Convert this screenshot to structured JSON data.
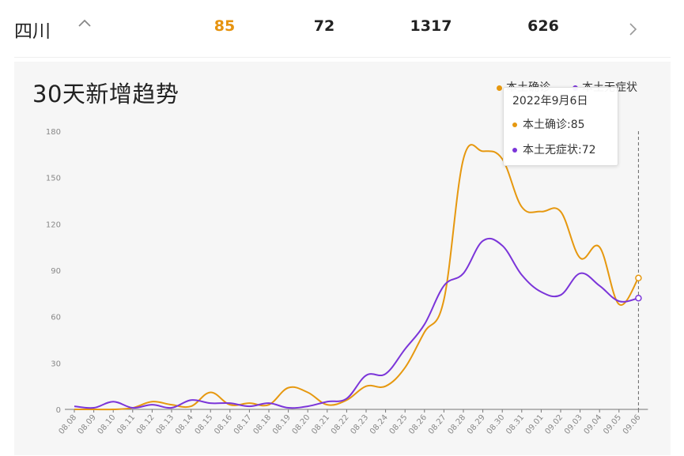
{
  "header": {
    "province": "四川",
    "stats": [
      "85",
      "72",
      "1317",
      "626"
    ]
  },
  "colors": {
    "confirmed": "#e6980f",
    "asymptomatic": "#7b35d9",
    "highlight": "#e6930f"
  },
  "icons": {
    "expand": "chevron-up-icon",
    "next": "chevron-right-icon"
  },
  "tooltip": {
    "title": "2022年9月6日",
    "rows": [
      "本土确诊:85",
      "本土无症状:72"
    ]
  },
  "chart_data": {
    "type": "line",
    "title": "30天新增趋势",
    "legend": [
      "本土确诊",
      "本土无症状"
    ],
    "legend_position": "top-right",
    "categories": [
      "08.08",
      "08.09",
      "08.10",
      "08.11",
      "08.12",
      "08.13",
      "08.14",
      "08.15",
      "08.16",
      "08.17",
      "08.18",
      "08.19",
      "08.20",
      "08.21",
      "08.22",
      "08.23",
      "08.24",
      "08.25",
      "08.26",
      "08.27",
      "08.28",
      "08.29",
      "08.30",
      "08.31",
      "09.01",
      "09.02",
      "09.03",
      "09.04",
      "09.05",
      "09.06"
    ],
    "series": [
      {
        "name": "本土确诊",
        "values": [
          0,
          0,
          0,
          1,
          5,
          3,
          2,
          11,
          3,
          4,
          3,
          14,
          11,
          3,
          6,
          15,
          15,
          27,
          50,
          71,
          162,
          167,
          162,
          131,
          128,
          128,
          98,
          105,
          68,
          85
        ]
      },
      {
        "name": "本土无症状",
        "values": [
          2,
          1,
          5,
          1,
          3,
          1,
          6,
          4,
          4,
          2,
          4,
          1,
          2,
          5,
          7,
          22,
          23,
          39,
          55,
          80,
          88,
          109,
          106,
          87,
          76,
          74,
          88,
          80,
          70,
          72
        ]
      }
    ],
    "ylim": [
      0,
      180
    ],
    "yticks": [
      0,
      30,
      60,
      90,
      120,
      150,
      180
    ],
    "grid": false
  }
}
